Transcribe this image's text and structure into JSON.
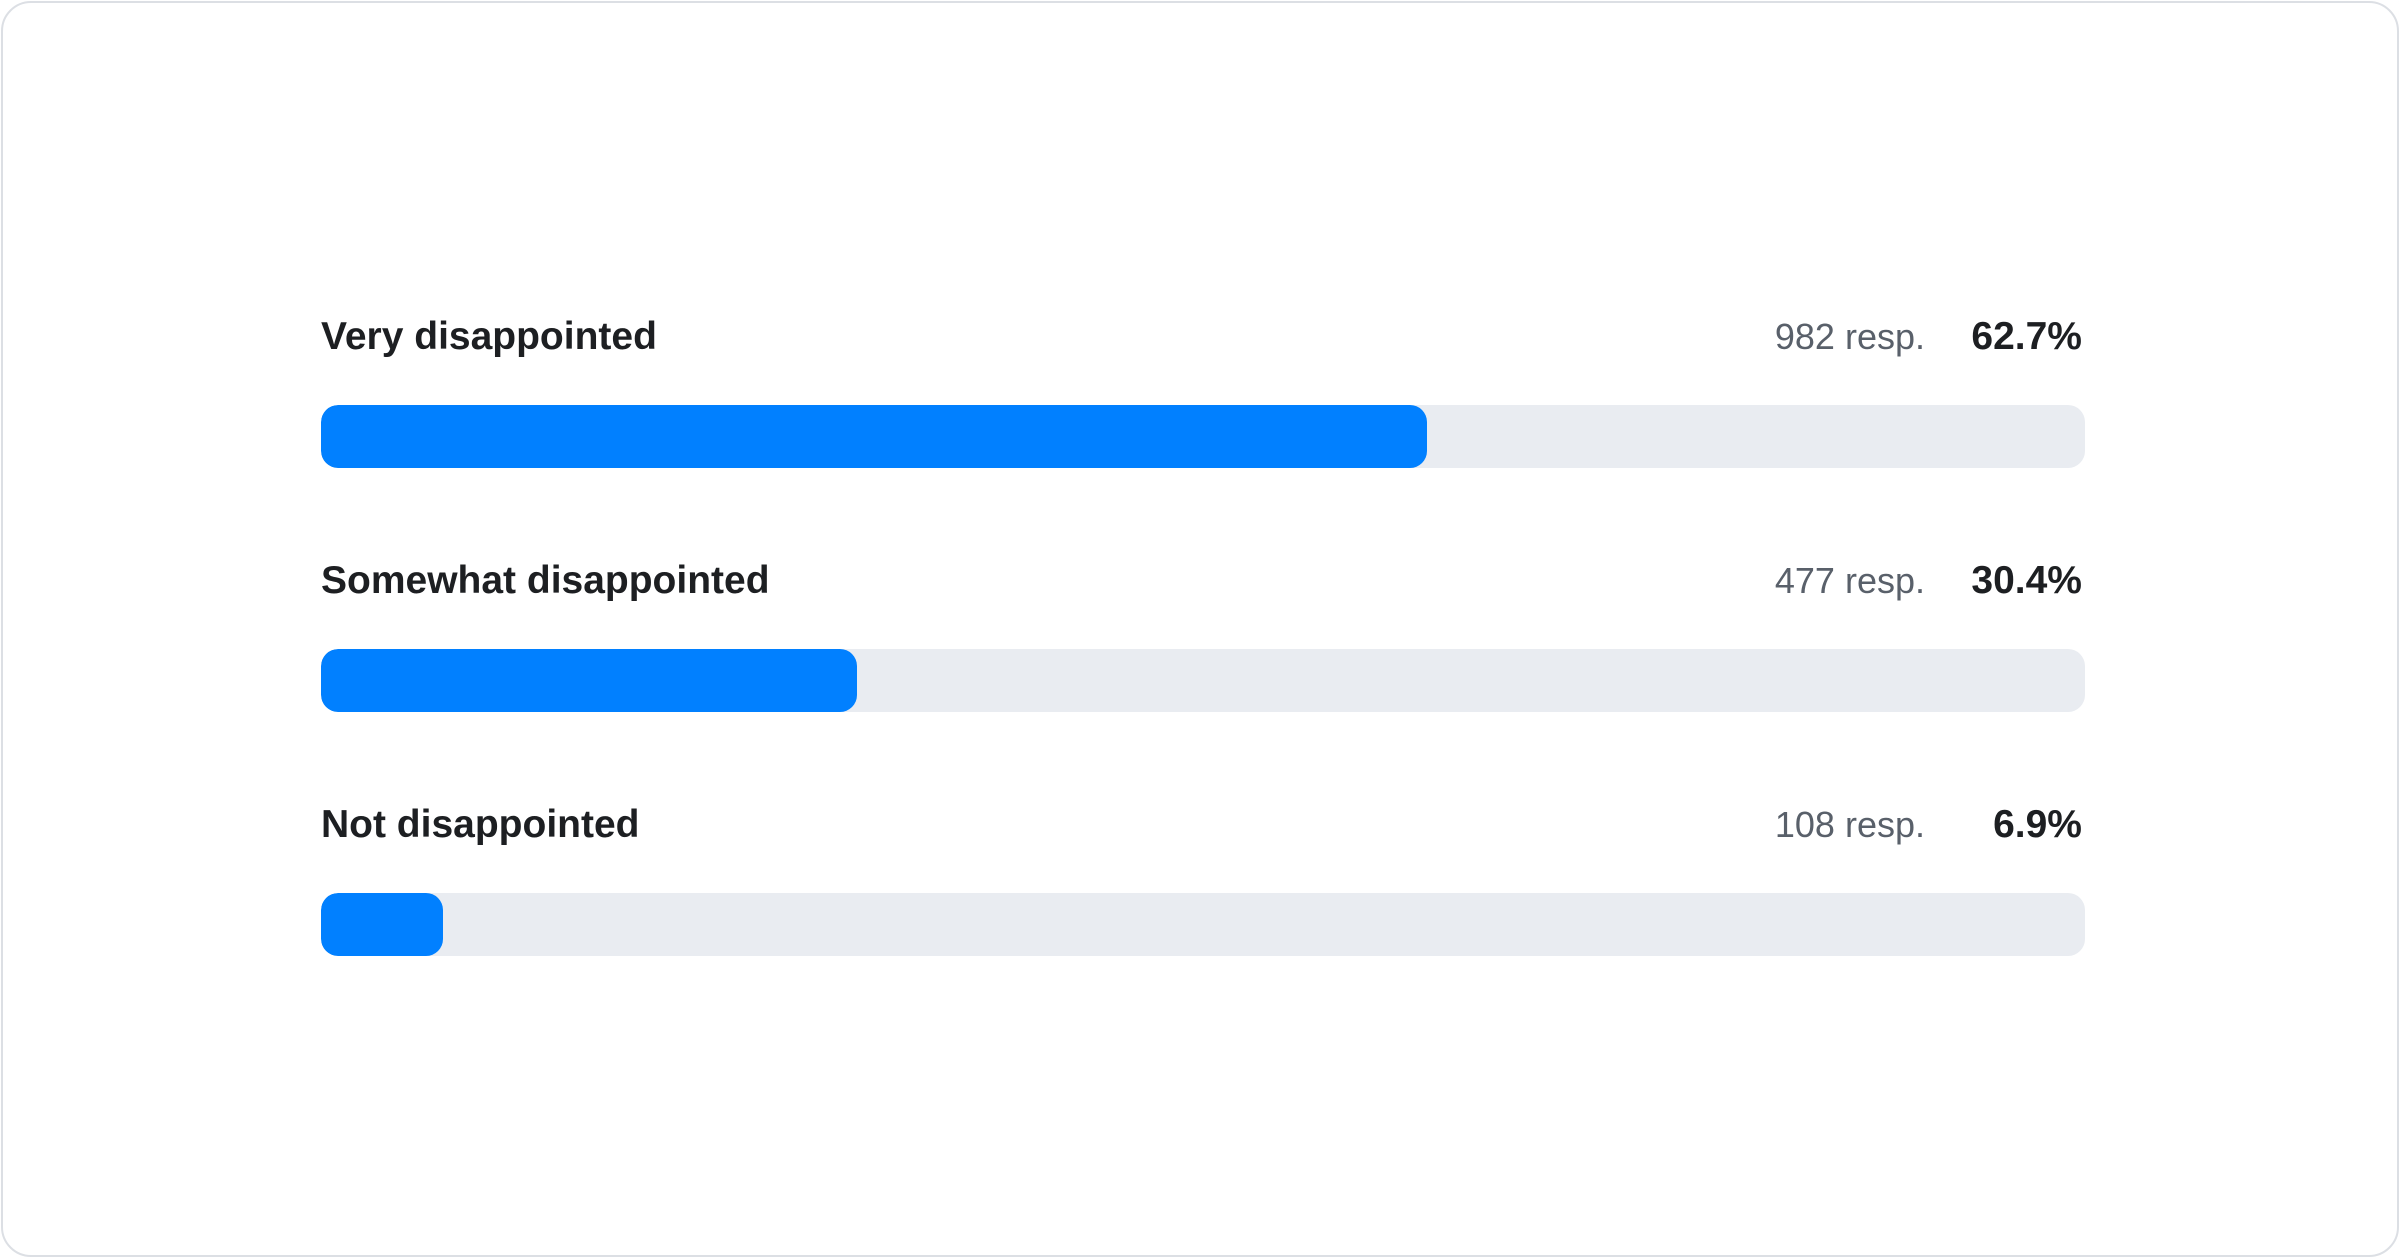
{
  "chart_data": {
    "type": "bar",
    "orientation": "horizontal",
    "categories": [
      "Very disappointed",
      "Somewhat disappointed",
      "Not disappointed"
    ],
    "values": [
      62.7,
      30.4,
      6.9
    ],
    "responses": [
      "982 resp.",
      "477 resp.",
      "108 resp."
    ],
    "value_labels": [
      "62.7%",
      "30.4%",
      "6.9%"
    ],
    "xlim": [
      0,
      100
    ],
    "grid": false,
    "colors": {
      "fill": "#0180ff",
      "track": "#e9ecf1"
    }
  }
}
